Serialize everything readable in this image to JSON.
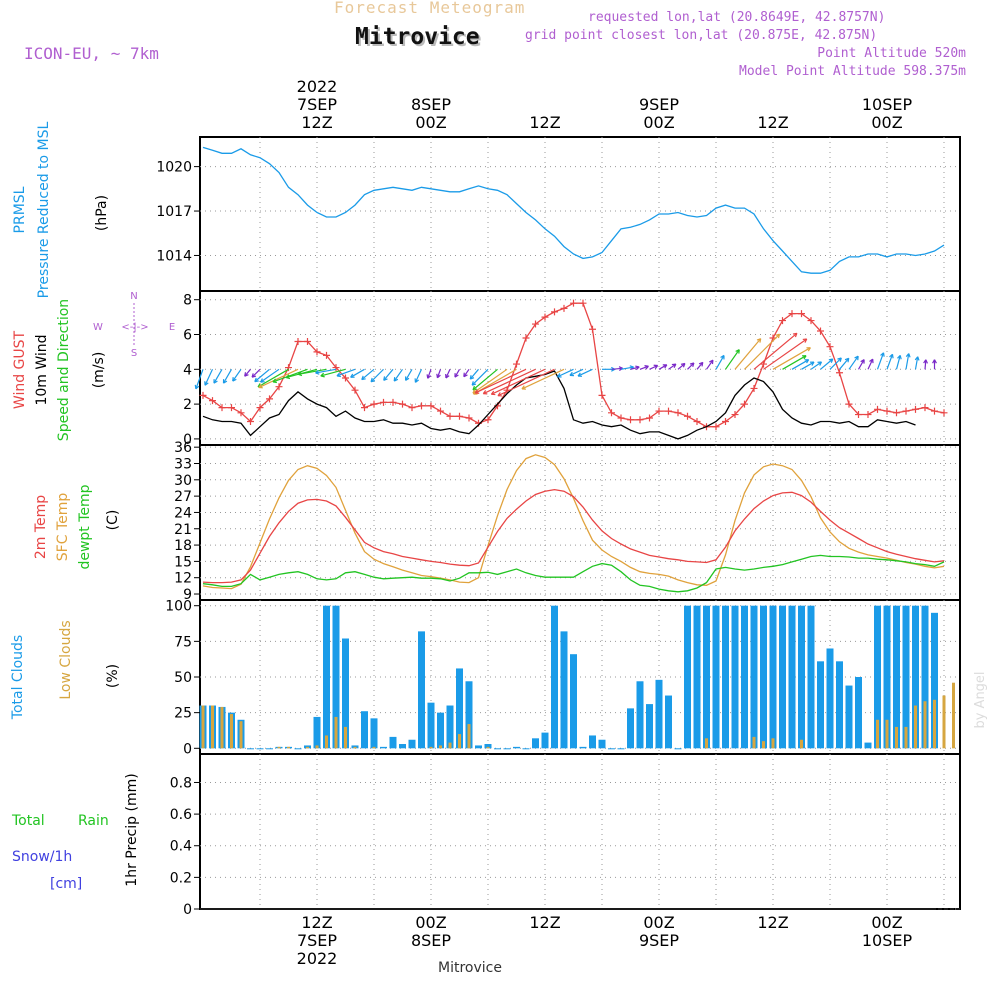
{
  "header": {
    "subtitle": "Forecast Meteogram",
    "location": "Mitrovice",
    "model": "ICON-EU, ~ 7km",
    "requested": "requested lon,lat (20.8649E, 42.8757N)",
    "grid_point": "grid point closest lon,lat (20.875E, 42.875N)",
    "point_alt": "Point Altitude 520m",
    "model_alt": "Model Point Altitude 598.375m",
    "credit": "by Angel",
    "footer_location": "Mitrovice"
  },
  "colors": {
    "pressure": "#1a9be8",
    "gust": "#e84545",
    "wind": "#000000",
    "temp2m": "#e84545",
    "sfc_temp": "#e0a23c",
    "dewpt": "#22c422",
    "total_clouds": "#1a9be8",
    "low_clouds": "#d6a640",
    "purple": "#b05fd0",
    "snow": "#4040e0"
  },
  "time_axis": {
    "top_labels": [
      {
        "hour": 12,
        "lines": [
          "2022",
          "7SEP",
          "12Z"
        ]
      },
      {
        "hour": 24,
        "lines": [
          "8SEP",
          "00Z"
        ]
      },
      {
        "hour": 36,
        "lines": [
          "12Z"
        ]
      },
      {
        "hour": 48,
        "lines": [
          "9SEP",
          "00Z"
        ]
      },
      {
        "hour": 60,
        "lines": [
          "12Z"
        ]
      },
      {
        "hour": 72,
        "lines": [
          "10SEP",
          "00Z"
        ]
      }
    ],
    "bottom_labels": [
      {
        "hour": 12,
        "lines": [
          "12Z",
          "7SEP",
          "2022"
        ]
      },
      {
        "hour": 24,
        "lines": [
          "00Z",
          "8SEP"
        ]
      },
      {
        "hour": 36,
        "lines": [
          "12Z"
        ]
      },
      {
        "hour": 48,
        "lines": [
          "00Z",
          "9SEP"
        ]
      },
      {
        "hour": 60,
        "lines": [
          "12Z"
        ]
      },
      {
        "hour": 72,
        "lines": [
          "00Z",
          "10SEP"
        ]
      }
    ]
  },
  "compass": {
    "n": "N",
    "s": "S",
    "w": "W",
    "e": "E",
    "arrow": "<-|->"
  },
  "chart_data": [
    {
      "type": "line",
      "panel": "pressure",
      "ylabels": [
        "PRMSL",
        "Pressure Reduced to MSL"
      ],
      "unit": "(hPa)",
      "yticks": [
        1014,
        1017,
        1020
      ],
      "ylim": [
        1011.6,
        1022.0
      ],
      "series": [
        {
          "values": [
            1021.3,
            1021.1,
            1020.9,
            1020.9,
            1021.2,
            1020.8,
            1020.6,
            1020.2,
            1019.6,
            1018.6,
            1018.1,
            1017.4,
            1016.9,
            1016.6,
            1016.6,
            1016.9,
            1017.4,
            1018.1,
            1018.4,
            1018.5,
            1018.6,
            1018.5,
            1018.4,
            1018.6,
            1018.5,
            1018.4,
            1018.3,
            1018.3,
            1018.5,
            1018.7,
            1018.5,
            1018.4,
            1018.1,
            1017.5,
            1016.9,
            1016.4,
            1015.8,
            1015.3,
            1014.6,
            1014.1,
            1013.8,
            1013.9,
            1014.2,
            1015.0,
            1015.8,
            1015.9,
            1016.1,
            1016.4,
            1016.8,
            1016.8,
            1016.9,
            1016.7,
            1016.6,
            1016.7,
            1017.2,
            1017.4,
            1017.2,
            1017.2,
            1016.8,
            1015.8,
            1015.0,
            1014.3,
            1013.6,
            1012.9,
            1012.8,
            1012.8,
            1013.0,
            1013.6,
            1013.9,
            1013.9,
            1014.1,
            1014.1,
            1013.9,
            1014.1,
            1014.1,
            1014.0,
            1014.1,
            1014.3,
            1014.7
          ]
        }
      ]
    },
    {
      "type": "line",
      "panel": "wind",
      "ylabels": [
        "Wind GUST",
        "10m Wind",
        "Speed and Direction"
      ],
      "unit": "(m/s)",
      "yticks": [
        0,
        2,
        4,
        6,
        8
      ],
      "ylim": [
        -0.35,
        8.5
      ],
      "series": [
        {
          "name": "Wind GUST",
          "values": [
            2.5,
            2.2,
            1.8,
            1.8,
            1.5,
            1.0,
            1.8,
            2.3,
            3.0,
            4.1,
            5.6,
            5.6,
            5.0,
            4.8,
            4.1,
            3.5,
            2.8,
            1.8,
            2.0,
            2.1,
            2.1,
            2.0,
            1.8,
            1.9,
            1.9,
            1.6,
            1.3,
            1.3,
            1.2,
            0.9,
            1.1,
            1.9,
            2.8,
            4.3,
            5.8,
            6.6,
            7.0,
            7.3,
            7.5,
            7.8,
            7.8,
            6.3,
            2.5,
            1.5,
            1.2,
            1.1,
            1.1,
            1.2,
            1.6,
            1.6,
            1.5,
            1.3,
            1.0,
            0.7,
            0.7,
            1.0,
            1.4,
            2.0,
            2.9,
            4.3,
            5.8,
            6.8,
            7.2,
            7.2,
            6.8,
            6.2,
            5.3,
            3.8,
            2.0,
            1.4,
            1.4,
            1.7,
            1.6,
            1.5,
            1.6,
            1.7,
            1.8,
            1.6,
            1.5
          ]
        },
        {
          "name": "10m Wind",
          "values": [
            1.3,
            1.1,
            1.0,
            1.0,
            0.9,
            0.2,
            0.7,
            1.2,
            1.4,
            2.2,
            2.7,
            2.3,
            2.0,
            1.8,
            1.3,
            1.6,
            1.2,
            1.0,
            1.0,
            1.1,
            0.9,
            0.9,
            0.8,
            0.9,
            0.6,
            0.5,
            0.6,
            0.4,
            0.3,
            0.8,
            1.4,
            2.0,
            2.6,
            3.1,
            3.5,
            3.6,
            3.7,
            3.9,
            2.9,
            1.1,
            0.9,
            1.0,
            0.8,
            0.7,
            0.8,
            0.5,
            0.3,
            0.4,
            0.4,
            0.2,
            0.0,
            0.2,
            0.5,
            0.7,
            1.0,
            1.5,
            2.5,
            3.1,
            3.5,
            3.3,
            2.7,
            1.7,
            1.2,
            0.9,
            0.8,
            1.0,
            1.0,
            0.9,
            1.0,
            0.7,
            0.7,
            1.1,
            1.0,
            0.9,
            1.0,
            0.8
          ]
        }
      ],
      "arrow_dirs_deg": [
        200,
        205,
        210,
        210,
        215,
        220,
        225,
        230,
        235,
        240,
        245,
        250,
        255,
        260,
        260,
        255,
        250,
        240,
        230,
        225,
        220,
        215,
        210,
        205,
        200,
        200,
        205,
        210,
        215,
        220,
        225,
        230,
        235,
        240,
        245,
        245,
        245,
        245,
        245,
        245,
        245,
        245,
        90,
        85,
        80,
        75,
        70,
        65,
        60,
        55,
        50,
        45,
        40,
        35,
        30,
        35,
        40,
        45,
        50,
        55,
        60,
        60,
        60,
        60,
        55,
        50,
        45,
        40,
        35,
        30,
        25,
        20,
        20,
        15,
        10,
        10,
        5,
        0
      ]
    },
    {
      "type": "line",
      "panel": "temperature",
      "ylabels": [
        "2m Temp",
        "SFC Temp",
        "dewpt Temp"
      ],
      "unit": "(C)",
      "yticks": [
        9,
        12,
        15,
        18,
        21,
        24,
        27,
        30,
        33,
        36
      ],
      "ylim": [
        7.9,
        36.4
      ],
      "series": [
        {
          "name": "2m Temp",
          "values": [
            11.2,
            11.1,
            11.1,
            11.2,
            11.6,
            13.4,
            16.5,
            19.6,
            22.1,
            24.2,
            25.7,
            26.3,
            26.4,
            26.1,
            25.2,
            23.1,
            20.8,
            18.5,
            17.5,
            16.8,
            16.4,
            15.9,
            15.6,
            15.3,
            15.0,
            14.8,
            14.5,
            14.3,
            14.2,
            14.7,
            17.6,
            20.5,
            22.9,
            24.6,
            26.1,
            27.3,
            27.9,
            28.2,
            27.9,
            26.9,
            25.0,
            22.6,
            20.6,
            19.2,
            18.2,
            17.3,
            16.7,
            16.1,
            15.8,
            15.5,
            15.3,
            15.0,
            14.9,
            14.8,
            15.3,
            17.6,
            20.6,
            22.8,
            24.7,
            26.1,
            27.1,
            27.6,
            27.7,
            27.1,
            25.9,
            24.2,
            22.6,
            21.2,
            20.2,
            19.2,
            18.2,
            17.5,
            16.8,
            16.3,
            15.9,
            15.5,
            15.2,
            14.9,
            15.1
          ]
        },
        {
          "name": "SFC Temp",
          "values": [
            10.5,
            10.2,
            10.1,
            10.0,
            10.8,
            14.0,
            18.4,
            22.8,
            26.7,
            29.9,
            31.9,
            32.6,
            32.1,
            30.8,
            28.6,
            24.4,
            20.2,
            16.8,
            15.4,
            14.6,
            14.0,
            13.4,
            12.9,
            12.4,
            12.2,
            11.9,
            11.6,
            11.2,
            11.1,
            12.0,
            17.9,
            23.4,
            28.2,
            31.7,
            33.9,
            34.6,
            34.1,
            32.8,
            30.2,
            26.6,
            22.5,
            18.9,
            17.1,
            15.9,
            15.0,
            13.9,
            13.1,
            12.8,
            12.6,
            12.3,
            11.6,
            11.1,
            10.7,
            10.6,
            11.4,
            16.2,
            22.5,
            27.6,
            30.9,
            32.4,
            32.9,
            32.6,
            31.9,
            29.9,
            26.9,
            23.0,
            20.4,
            18.6,
            17.4,
            16.7,
            16.2,
            15.9,
            15.6,
            15.2,
            14.8,
            14.5,
            14.1,
            13.8,
            14.1
          ]
        },
        {
          "name": "dewpt Temp",
          "values": [
            10.9,
            10.7,
            10.4,
            10.4,
            10.9,
            12.6,
            11.6,
            12.1,
            12.6,
            12.9,
            13.1,
            12.6,
            11.8,
            11.6,
            11.8,
            12.9,
            13.1,
            12.6,
            12.1,
            11.8,
            11.9,
            12.0,
            12.1,
            11.9,
            11.9,
            11.8,
            11.4,
            11.9,
            12.9,
            12.9,
            13.0,
            12.6,
            13.1,
            13.6,
            12.9,
            12.4,
            12.1,
            12.1,
            12.1,
            12.1,
            13.1,
            14.1,
            14.6,
            14.3,
            13.1,
            11.6,
            10.6,
            10.4,
            9.9,
            9.6,
            9.4,
            9.6,
            10.1,
            11.1,
            13.6,
            13.9,
            13.6,
            13.4,
            13.6,
            13.9,
            14.1,
            14.4,
            14.9,
            15.4,
            15.9,
            16.1,
            15.9,
            15.9,
            15.8,
            15.6,
            15.6,
            15.4,
            15.3,
            15.1,
            14.9,
            14.6,
            14.4,
            14.1,
            14.9
          ]
        }
      ]
    },
    {
      "type": "bar",
      "panel": "clouds",
      "ylabels": [
        "Total Clouds",
        "Low Clouds"
      ],
      "unit": "(%)",
      "yticks": [
        0,
        25,
        50,
        75,
        100
      ],
      "ylim": [
        -4,
        104
      ],
      "series": [
        {
          "name": "Total Clouds",
          "values": [
            30,
            30,
            29,
            25,
            20,
            0,
            0,
            0,
            1,
            1,
            0,
            2,
            22,
            100,
            100,
            77,
            2,
            26,
            21,
            1,
            8,
            3,
            6,
            82,
            32,
            25,
            30,
            56,
            47,
            2,
            3,
            0,
            0,
            1,
            0,
            7,
            11,
            100,
            82,
            66,
            1,
            9,
            6,
            0,
            0,
            28,
            47,
            31,
            48,
            37,
            0,
            100,
            100,
            100,
            100,
            100,
            100,
            100,
            100,
            100,
            100,
            100,
            100,
            100,
            100,
            61,
            70,
            61,
            44,
            50,
            4,
            100,
            100,
            100,
            100,
            100,
            100,
            95
          ]
        },
        {
          "name": "Low Clouds",
          "values": [
            30,
            30,
            29,
            24,
            19,
            0,
            0,
            0,
            1,
            1,
            0,
            1,
            2,
            9,
            22,
            15,
            1,
            0,
            1,
            0,
            0,
            0,
            0,
            0,
            1,
            2,
            4,
            10,
            17,
            0,
            1,
            0,
            0,
            0,
            0,
            0,
            0,
            0,
            0,
            0,
            0,
            0,
            0,
            0,
            0,
            0,
            0,
            0,
            0,
            0,
            0,
            0,
            0,
            7,
            0,
            0,
            0,
            0,
            8,
            5,
            7,
            0,
            0,
            6,
            0,
            0,
            0,
            0,
            0,
            0,
            0,
            20,
            20,
            15,
            15,
            30,
            33,
            34,
            37,
            46
          ]
        }
      ]
    },
    {
      "type": "line",
      "panel": "precip",
      "ylabels": [
        "Total",
        "Rain",
        "Snow/1h",
        "[cm]"
      ],
      "unit": "1hr Precip (mm)",
      "yticks": [
        0,
        0.2,
        0.4,
        0.6,
        0.8
      ],
      "ylim": [
        0,
        0.98
      ],
      "series": [
        {
          "name": "Total",
          "values": [
            0,
            0,
            0,
            0,
            0,
            0,
            0,
            0,
            0,
            0,
            0,
            0,
            0,
            0,
            0,
            0,
            0,
            0,
            0,
            0,
            0,
            0,
            0,
            0,
            0,
            0,
            0,
            0,
            0,
            0,
            0,
            0,
            0,
            0,
            0,
            0,
            0,
            0,
            0,
            0,
            0,
            0,
            0,
            0,
            0,
            0,
            0,
            0,
            0,
            0,
            0,
            0,
            0,
            0,
            0,
            0,
            0,
            0,
            0,
            0,
            0,
            0,
            0,
            0,
            0,
            0,
            0,
            0,
            0,
            0,
            0,
            0,
            0,
            0,
            0,
            0,
            0,
            0
          ]
        }
      ]
    }
  ]
}
